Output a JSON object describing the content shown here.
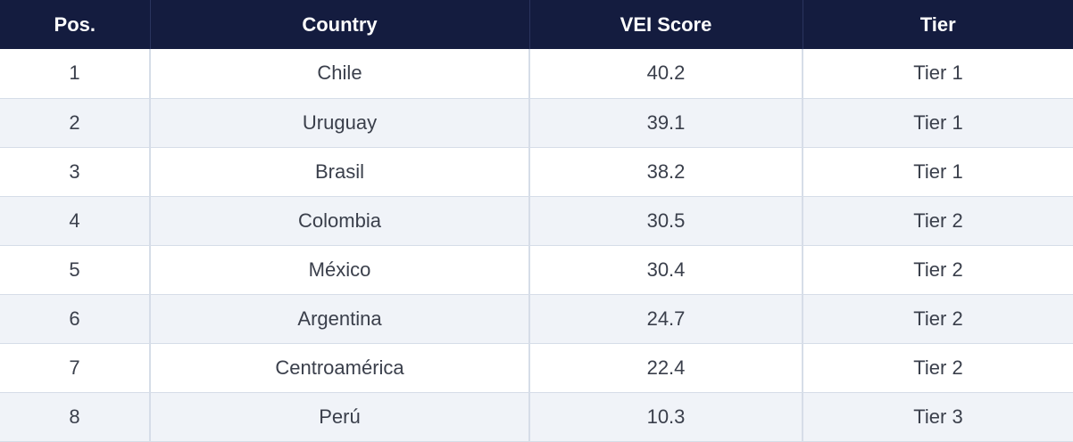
{
  "table": {
    "headers": {
      "pos": "Pos.",
      "country": "Country",
      "score": "VEI Score",
      "tier": "Tier"
    },
    "rows": [
      {
        "pos": "1",
        "country": "Chile",
        "score": "40.2",
        "tier": "Tier 1"
      },
      {
        "pos": "2",
        "country": "Uruguay",
        "score": "39.1",
        "tier": "Tier 1"
      },
      {
        "pos": "3",
        "country": "Brasil",
        "score": "38.2",
        "tier": "Tier 1"
      },
      {
        "pos": "4",
        "country": "Colombia",
        "score": "30.5",
        "tier": "Tier 2"
      },
      {
        "pos": "5",
        "country": "México",
        "score": "30.4",
        "tier": "Tier 2"
      },
      {
        "pos": "6",
        "country": "Argentina",
        "score": "24.7",
        "tier": "Tier 2"
      },
      {
        "pos": "7",
        "country": "Centroamérica",
        "score": "22.4",
        "tier": "Tier 2"
      },
      {
        "pos": "8",
        "country": "Perú",
        "score": "10.3",
        "tier": "Tier 3"
      }
    ]
  },
  "colors": {
    "header_background": "#141c3f",
    "header_text": "#ffffff",
    "row_alt_background": "#f0f3f8",
    "cell_text": "#3a3f4b",
    "grid_line": "#d6dde8"
  }
}
